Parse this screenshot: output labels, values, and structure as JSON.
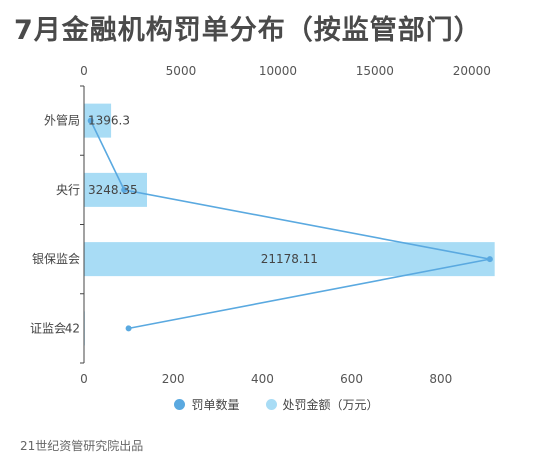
{
  "title": "7月金融机构罚单分布（按监管部门）",
  "source": "21世纪资管研究院出品",
  "colors": {
    "bar": "#a8dcf5",
    "line": "#5aa9e0",
    "axis": "#444444"
  },
  "chart_data": {
    "type": "bar",
    "orientation": "horizontal",
    "categories": [
      "外管局",
      "央行",
      "银保监会",
      "证监会"
    ],
    "series": [
      {
        "name": "处罚金额（万元）",
        "type": "bar",
        "axis": "top",
        "values": [
          1396.3,
          3248.35,
          21178.11,
          42
        ],
        "labels": [
          "1396.3",
          "3248.35",
          "21178.11",
          "42"
        ]
      },
      {
        "name": "罚单数量",
        "type": "line",
        "axis": "bottom",
        "values": [
          15,
          90,
          910,
          100
        ]
      }
    ],
    "top_axis": {
      "range": [
        0,
        23000
      ],
      "ticks": [
        0,
        5000,
        10000,
        15000,
        20000
      ]
    },
    "bottom_axis": {
      "range": [
        0,
        1000
      ],
      "ticks": [
        0,
        200,
        400,
        600,
        800
      ]
    },
    "legend_position": "bottom"
  }
}
